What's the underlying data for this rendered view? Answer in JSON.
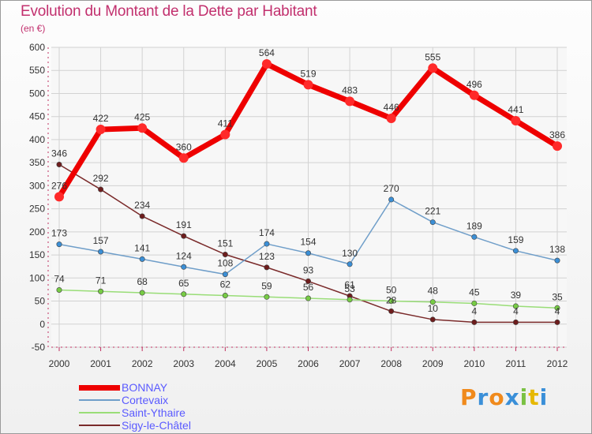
{
  "title": "Evolution du Montant de la Dette par Habitant",
  "subtitle": "(en €)",
  "logo": "Proxiti",
  "chart_data": {
    "type": "line",
    "x": [
      "2000",
      "2001",
      "2002",
      "2003",
      "2004",
      "2005",
      "2006",
      "2007",
      "2008",
      "2009",
      "2010",
      "2011",
      "2012"
    ],
    "ylim": [
      -50,
      600
    ],
    "yticks": [
      -50,
      0,
      50,
      100,
      150,
      200,
      250,
      300,
      350,
      400,
      450,
      500,
      550,
      600
    ],
    "grid": true,
    "legend_position": "bottom-left",
    "series": [
      {
        "name": "BONNAY",
        "color": "#ee0000",
        "marker": "#ff2a2a",
        "width": 7,
        "values": [
          276,
          422,
          425,
          360,
          411,
          564,
          519,
          483,
          446,
          555,
          496,
          441,
          386
        ],
        "labels": [
          "276",
          "422",
          "425",
          "360",
          "411",
          "564",
          "519",
          "483",
          "446",
          "555",
          "496",
          "441",
          "386"
        ]
      },
      {
        "name": "Cortevaix",
        "color": "#6f9ec9",
        "marker": "#3b8fd6",
        "width": 1.5,
        "values": [
          173,
          157,
          141,
          124,
          108,
          174,
          154,
          130,
          270,
          221,
          189,
          159,
          138
        ],
        "labels": [
          "173",
          "157",
          "141",
          "124",
          "108",
          "174",
          "154",
          "130",
          "270",
          "221",
          "189",
          "159",
          "138"
        ]
      },
      {
        "name": "Saint-Ythaire",
        "color": "#99dd77",
        "marker": "#77cc44",
        "width": 1.5,
        "values": [
          74,
          71,
          68,
          65,
          62,
          59,
          56,
          53,
          50,
          48,
          45,
          39,
          35
        ],
        "labels": [
          "74",
          "71",
          "68",
          "65",
          "62",
          "59",
          "56",
          "53",
          "50",
          "48",
          "45",
          "39",
          "35"
        ]
      },
      {
        "name": "Sigy-le-Châtel",
        "color": "#7a2a2a",
        "marker": "#6e1d1d",
        "width": 1.5,
        "values": [
          346,
          292,
          234,
          191,
          151,
          123,
          93,
          61,
          28,
          10,
          4,
          4,
          4
        ],
        "labels": [
          "346",
          "292",
          "234",
          "191",
          "151",
          "123",
          "93",
          "61",
          "28",
          "10",
          "4",
          "4",
          "4"
        ]
      }
    ]
  }
}
